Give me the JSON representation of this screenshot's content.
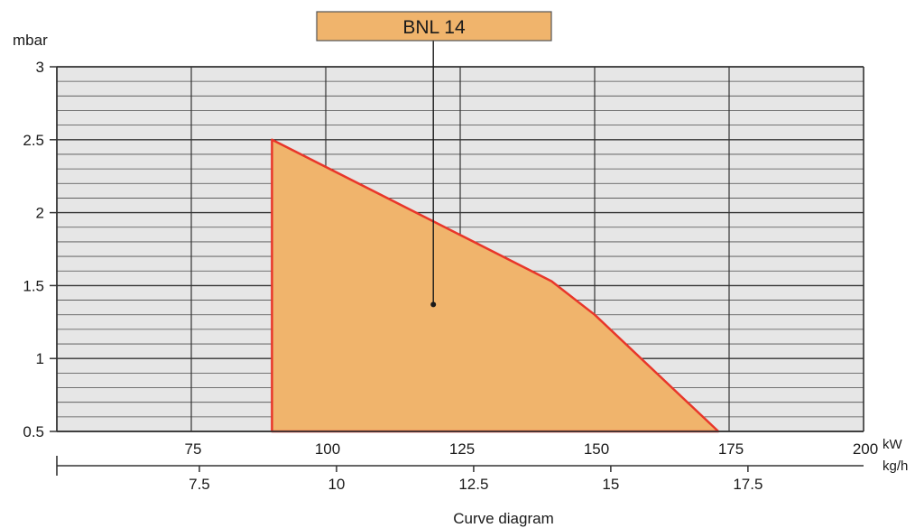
{
  "chart_data": {
    "type": "area",
    "title": "BNL 14",
    "caption": "Curve diagram",
    "ylabel": "mbar",
    "x_unit_primary": "kW",
    "x_unit_secondary": "kg/h",
    "xlim": [
      50,
      200
    ],
    "ylim": [
      0.5,
      3
    ],
    "y_ticks": [
      0.5,
      1,
      1.5,
      2,
      2.5,
      3
    ],
    "y_tick_labels": [
      "0.5",
      "1",
      "1.5",
      "2",
      "2.5",
      "3"
    ],
    "x_ticks": [
      75,
      100,
      125,
      150,
      175,
      200
    ],
    "x_tick_labels": [
      "75",
      "100",
      "125",
      "150",
      "175",
      "200"
    ],
    "secondary_ticks": [
      7.5,
      10,
      12.5,
      15,
      17.5
    ],
    "secondary_tick_labels": [
      "7.5",
      "10",
      "12.5",
      "15",
      "17.5"
    ],
    "secondary_to_primary": [
      [
        7.5,
        76.5
      ],
      [
        10,
        102
      ],
      [
        12.5,
        127.5
      ],
      [
        15,
        153
      ],
      [
        17.5,
        178.5
      ]
    ],
    "grid": true,
    "y_minor_step": 0.1,
    "series": [
      {
        "x": [
          90,
          90,
          142,
          150,
          173,
          90
        ],
        "y": [
          0.5,
          2.5,
          1.53,
          1.3,
          0.5,
          0.5
        ]
      }
    ],
    "title_marker": {
      "x": 120,
      "y": 1.37
    },
    "colors": {
      "plot_bg": "#e6e6e6",
      "grid": "#4d4d4d",
      "fill": "#f0b46c",
      "stroke": "#e8362a",
      "title_box": "#f0b46c"
    }
  }
}
